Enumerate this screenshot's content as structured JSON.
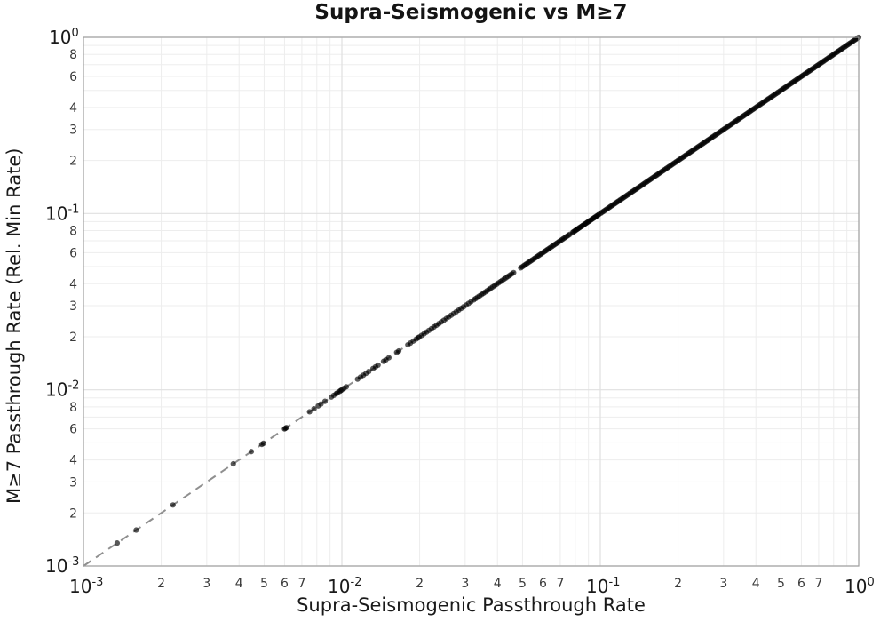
{
  "figure": {
    "title": "Supra-Seismogenic vs M≥7",
    "xlabel": "Supra-Seismogenic Passthrough Rate",
    "ylabel": "M≥7 Passthrough Rate (Rel. Min Rate)"
  },
  "style": {
    "background": "#ffffff",
    "spine_color": "#a0a0a0",
    "grid_major_color": "#e0e0e0",
    "grid_minor_color": "#ededed",
    "major_tick_label_color": "#1a1a1a",
    "minor_tick_label_color": "#3a3a3a",
    "identity_line_color": "#8f8f8f",
    "point_color": "#000000"
  },
  "chart_data": {
    "type": "scatter",
    "title": "Supra-Seismogenic vs M≥7",
    "xlabel": "Supra-Seismogenic Passthrough Rate",
    "ylabel": "M≥7 Passthrough Rate (Rel. Min Rate)",
    "x_scale": "log",
    "y_scale": "log",
    "xlim": [
      0.001,
      1
    ],
    "ylim": [
      0.001,
      1
    ],
    "grid": true,
    "legend": "none",
    "x_major_exponents": [
      -3,
      -2,
      -1,
      0
    ],
    "y_major_exponents": [
      0,
      -1,
      -2,
      -3
    ],
    "x_minor_tick_digits": [
      2,
      3,
      4,
      5,
      6,
      7
    ],
    "y_minor_tick_digits": [
      2,
      3,
      4,
      6,
      8
    ],
    "reference_line": {
      "label": "y = x",
      "style": "dashed",
      "from": [
        0.001,
        0.001
      ],
      "to": [
        1,
        1
      ]
    },
    "series": [
      {
        "name": "passthrough-rate-points",
        "marker": "circle",
        "marker_radius_px": 3.1,
        "opacity": 0.65,
        "y_equals_x": true,
        "sparse_x": [
          0.00135,
          0.0016,
          0.00222,
          0.0038,
          0.00446,
          0.0049,
          0.00497,
          0.006,
          0.00605,
          0.0061,
          0.0075,
          0.0078,
          0.0081,
          0.0083,
          0.0086,
          0.0091,
          0.0093,
          0.0095,
          0.0096,
          0.0098,
          0.0099,
          0.01,
          0.0102,
          0.0104,
          0.0115,
          0.0118,
          0.0121,
          0.0124,
          0.0127,
          0.0132,
          0.0135,
          0.0138,
          0.0145,
          0.0148,
          0.0152,
          0.0163,
          0.0166,
          0.018,
          0.0184,
          0.0189,
          0.0194,
          0.0197
        ],
        "dense_runs": [
          {
            "x_start": 0.0199,
            "x_end": 0.0316,
            "count": 22
          },
          {
            "x_start": 0.0324,
            "x_end": 0.0462,
            "count": 22
          },
          {
            "x_start": 0.0492,
            "x_end": 0.0762,
            "count": 34
          },
          {
            "x_start": 0.0782,
            "x_end": 0.0988,
            "count": 26
          },
          {
            "x_start": 0.1005,
            "x_end": 1.0,
            "count": 185
          }
        ]
      }
    ]
  }
}
